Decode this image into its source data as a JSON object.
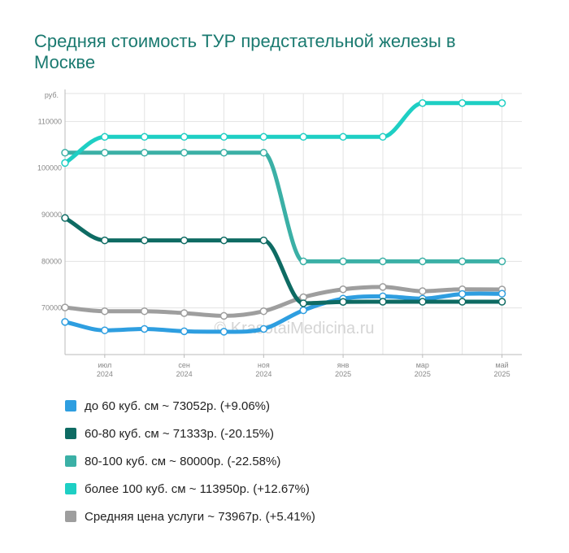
{
  "chart_data": {
    "type": "line",
    "title": "Средняя стоимость ТУР предстательной железы в Москве",
    "ylabel": "руб.",
    "watermark": "© KrasotaiMedicina.ru",
    "ylim": [
      60000,
      116000
    ],
    "yticks": [
      70000,
      80000,
      90000,
      100000,
      110000
    ],
    "ytick_labels": [
      "70000",
      "80000",
      "90000",
      "100000",
      "110000"
    ],
    "xlim": [
      0,
      11.5
    ],
    "x": [
      0,
      1,
      2,
      3,
      4,
      5,
      6,
      7,
      8,
      9,
      10,
      11
    ],
    "xticks": [
      {
        "x": 1,
        "month": "июл",
        "year": "2024"
      },
      {
        "x": 3,
        "month": "сен",
        "year": "2024"
      },
      {
        "x": 5,
        "month": "ноя",
        "year": "2024"
      },
      {
        "x": 7,
        "month": "янв",
        "year": "2025"
      },
      {
        "x": 9,
        "month": "мар",
        "year": "2025"
      },
      {
        "x": 11,
        "month": "май",
        "year": "2025"
      }
    ],
    "grid": true,
    "legend_position": "bottom",
    "series": [
      {
        "name": "до 60 куб. см",
        "legend": "до 60 куб. см ~ 73052р. (+9.06%)",
        "color": "#2e9ee0",
        "values": [
          67000,
          65200,
          65500,
          65000,
          64900,
          65500,
          69500,
          72000,
          72500,
          72000,
          73000,
          73052
        ]
      },
      {
        "name": "60-80 куб. см",
        "legend": "60-80 куб. см ~ 71333р. (-20.15%)",
        "color": "#0e6b63",
        "values": [
          89300,
          84500,
          84500,
          84500,
          84500,
          84500,
          71000,
          71300,
          71333,
          71333,
          71333,
          71333
        ]
      },
      {
        "name": "80-100 куб. см",
        "legend": "80-100 куб. см ~ 80000р. (-22.58%)",
        "color": "#3bb0a6",
        "values": [
          103300,
          103300,
          103300,
          103300,
          103300,
          103300,
          80000,
          80000,
          80000,
          80000,
          80000,
          80000
        ]
      },
      {
        "name": "более 100 куб. см",
        "legend": "более 100 куб. см ~ 113950р. (+12.67%)",
        "color": "#1ecfc4",
        "values": [
          101100,
          106700,
          106700,
          106700,
          106700,
          106700,
          106700,
          106700,
          106700,
          113950,
          113950,
          113950
        ]
      },
      {
        "name": "Средняя цена услуги",
        "legend": "Средняя цена услуги ~ 73967р. (+5.41%)",
        "color": "#9e9e9e",
        "values": [
          70100,
          69300,
          69300,
          68900,
          68300,
          69300,
          72300,
          74000,
          74500,
          73600,
          74000,
          73967
        ]
      }
    ]
  }
}
